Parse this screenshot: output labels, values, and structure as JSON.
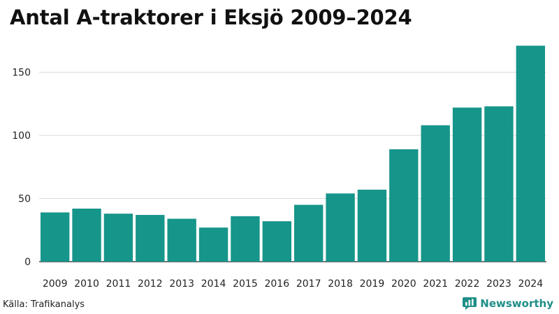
{
  "title": "Antal A-traktorer i Eksjö 2009–2024",
  "source": "Källa: Trafikanalys",
  "brand": {
    "name": "Newsworthy",
    "icon": "newsworthy-logo-icon",
    "color": "#1e8f88"
  },
  "colors": {
    "bar": "#16958a",
    "grid": "#d9d9d9",
    "axis": "#222222"
  },
  "chart_data": {
    "type": "bar",
    "title": "Antal A-traktorer i Eksjö 2009–2024",
    "xlabel": "",
    "ylabel": "",
    "categories": [
      "2009",
      "2010",
      "2011",
      "2012",
      "2013",
      "2014",
      "2015",
      "2016",
      "2017",
      "2018",
      "2019",
      "2020",
      "2021",
      "2022",
      "2023",
      "2024"
    ],
    "values": [
      39,
      42,
      38,
      37,
      34,
      27,
      36,
      32,
      45,
      54,
      57,
      89,
      108,
      122,
      123,
      171
    ],
    "ylim": [
      0,
      175
    ],
    "yticks": [
      0,
      50,
      100,
      150
    ],
    "grid": true,
    "legend": "none"
  }
}
